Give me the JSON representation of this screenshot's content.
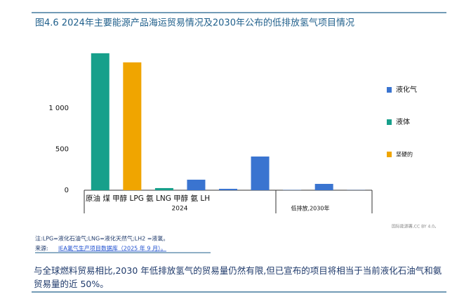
{
  "chart_data": {
    "type": "bar",
    "title": "图4.6 2024年主要能源产品海运贸易情况及2030年公布的低排放氢气项目情况",
    "categories": [
      null,
      null,
      null,
      null,
      null,
      null,
      null,
      null,
      null
    ],
    "category_labels_text": "原油 煤 甲醇 LPG 氨 LNG 甲醇 氨 LH",
    "groups": [
      "2024",
      "低排放,2030年"
    ],
    "series": [
      {
        "name": "液化气",
        "color": "#3a74d0",
        "values": [
          null,
          null,
          null,
          128,
          17,
          410,
          3,
          77,
          2
        ]
      },
      {
        "name": "液体",
        "color": "#17a08b",
        "values": [
          1667,
          null,
          26,
          null,
          null,
          null,
          null,
          null,
          null
        ]
      },
      {
        "name": "坚硬的",
        "color": "#f0a500",
        "values": [
          null,
          1556,
          null,
          null,
          null,
          null,
          null,
          null,
          null
        ]
      }
    ],
    "ylim": [
      0,
      1700
    ],
    "yticks": [
      0,
      500,
      {
        "value": 1000,
        "label": "1 000"
      }
    ],
    "grid": false,
    "legend": "right",
    "note": "注:LPG=液化石油气;LNG=液化天然气;LH2 =液氢。",
    "source_prefix": "来源:",
    "source_link": "IEA氢气生产项目数据库（2025 年 9 月）。",
    "credit": "国际能源署,CC BY 4.0。",
    "caption": "与全球燃料贸易相比,2030 年低排放氢气的贸易量仍然有限,但已宣布的项目将相当于当前液化石油气和氨贸易量的近 50%。"
  }
}
